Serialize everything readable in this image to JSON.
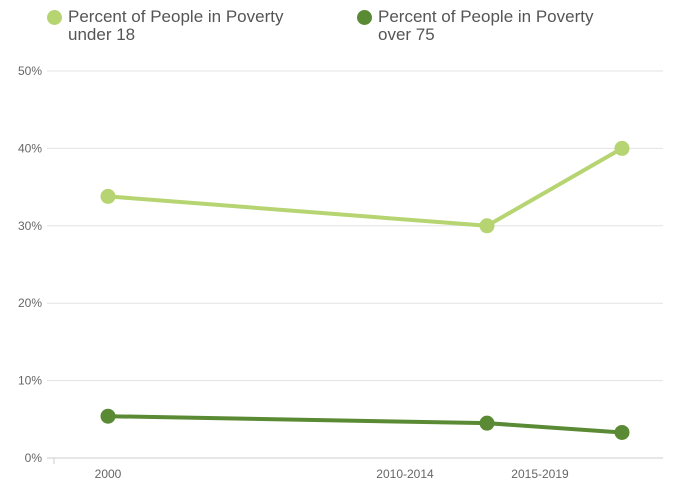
{
  "chart_data": {
    "type": "line",
    "title": "",
    "xlabel": "",
    "ylabel": "",
    "categories": [
      "2000",
      "2010-2014",
      "2015-2019"
    ],
    "y_ticks": [
      "0%",
      "10%",
      "20%",
      "30%",
      "40%",
      "50%"
    ],
    "ylim": [
      0,
      50
    ],
    "grid": true,
    "legend_position": "top",
    "series": [
      {
        "name": "Percent of People in Poverty under 18",
        "color": "#b6d471",
        "values": [
          33.8,
          30.0,
          40.0
        ]
      },
      {
        "name": "Percent of People in Poverty over 75",
        "color": "#5b8a34",
        "values": [
          5.4,
          4.5,
          3.3
        ]
      }
    ]
  }
}
